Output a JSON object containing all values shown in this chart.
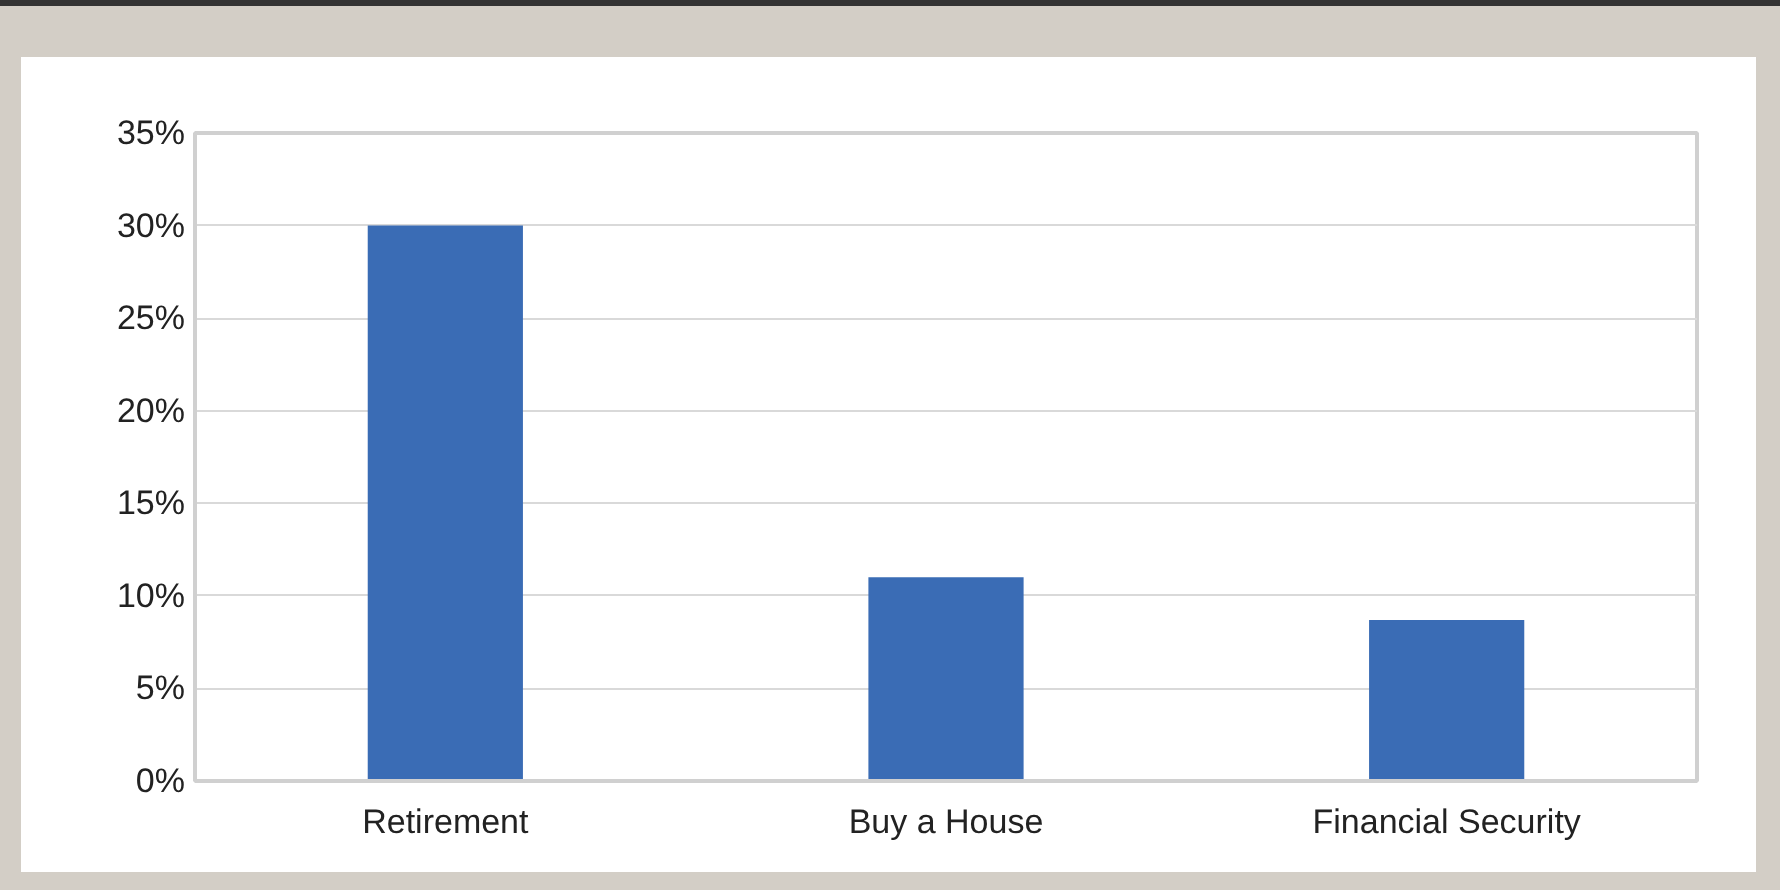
{
  "chart_data": {
    "type": "bar",
    "categories": [
      "Retirement",
      "Buy a House",
      "Financial Security"
    ],
    "values": [
      30,
      11,
      8.7
    ],
    "color": "#3a6cb5",
    "ylim": [
      0,
      35
    ],
    "yticks": [
      {
        "value": 0,
        "label": "0%"
      },
      {
        "value": 5,
        "label": "5%"
      },
      {
        "value": 10,
        "label": "10%"
      },
      {
        "value": 15,
        "label": "15%"
      },
      {
        "value": 20,
        "label": "20%"
      },
      {
        "value": 25,
        "label": "25%"
      },
      {
        "value": 30,
        "label": "30%"
      },
      {
        "value": 35,
        "label": "35%"
      }
    ],
    "grid": "y"
  }
}
